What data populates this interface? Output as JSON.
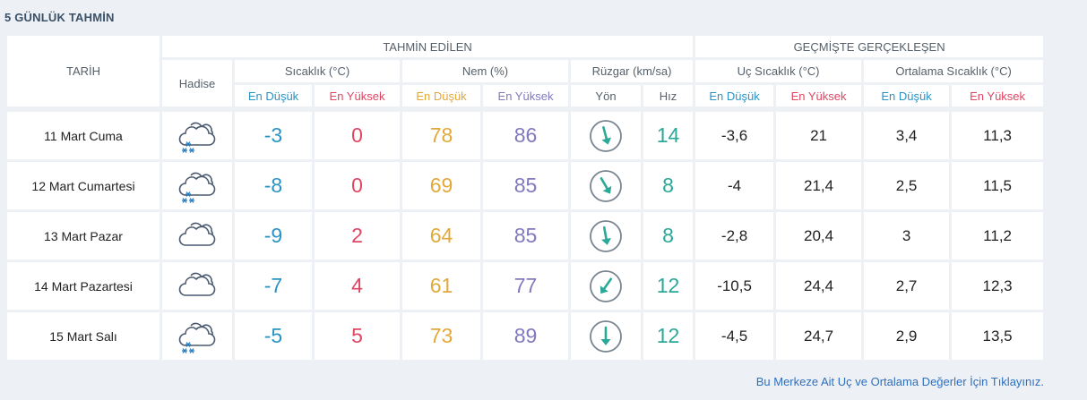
{
  "title": "5 GÜNLÜK TAHMİN",
  "headers": {
    "tarih": "TARİH",
    "tahmin_edilen": "TAHMİN EDİLEN",
    "gecmiste": "GEÇMİŞTE GERÇEKLEŞEN",
    "hadise": "Hadise",
    "sicaklik": "Sıcaklık (°C)",
    "nem": "Nem (%)",
    "ruzgar": "Rüzgar (km/sa)",
    "uc_sicaklik": "Uç Sıcaklık (°C)",
    "ortalama_sicaklik": "Ortalama Sıcaklık (°C)",
    "en_dusuk": "En Düşük",
    "en_yuksek": "En Yüksek",
    "yon": "Yön",
    "hiz": "Hız"
  },
  "rows": [
    {
      "date": "11 Mart Cuma",
      "icon": "snow-cloud-icon",
      "temp_low": "-3",
      "temp_high": "0",
      "hum_low": "78",
      "hum_high": "86",
      "wind_dir_deg": 165,
      "wind_speed": "14",
      "extreme_low": "-3,6",
      "extreme_high": "21",
      "avg_low": "3,4",
      "avg_high": "11,3"
    },
    {
      "date": "12 Mart Cumartesi",
      "icon": "snow-cloud-icon",
      "temp_low": "-8",
      "temp_high": "0",
      "hum_low": "69",
      "hum_high": "85",
      "wind_dir_deg": 150,
      "wind_speed": "8",
      "extreme_low": "-4",
      "extreme_high": "21,4",
      "avg_low": "2,5",
      "avg_high": "11,5"
    },
    {
      "date": "13 Mart Pazar",
      "icon": "cloud-icon",
      "temp_low": "-9",
      "temp_high": "2",
      "hum_low": "64",
      "hum_high": "85",
      "wind_dir_deg": 170,
      "wind_speed": "8",
      "extreme_low": "-2,8",
      "extreme_high": "20,4",
      "avg_low": "3",
      "avg_high": "11,2"
    },
    {
      "date": "14 Mart Pazartesi",
      "icon": "cloud-icon",
      "temp_low": "-7",
      "temp_high": "4",
      "hum_low": "61",
      "hum_high": "77",
      "wind_dir_deg": 215,
      "wind_speed": "12",
      "extreme_low": "-10,5",
      "extreme_high": "24,4",
      "avg_low": "2,7",
      "avg_high": "12,3"
    },
    {
      "date": "15 Mart Salı",
      "icon": "snow-cloud-icon",
      "temp_low": "-5",
      "temp_high": "5",
      "hum_low": "73",
      "hum_high": "89",
      "wind_dir_deg": 180,
      "wind_speed": "12",
      "extreme_low": "-4,5",
      "extreme_high": "24,7",
      "avg_low": "2,9",
      "avg_high": "13,5"
    }
  ],
  "footer_link": "Bu Merkeze Ait Uç ve Ortalama Değerler İçin Tıklayınız.",
  "colors": {
    "low": "#2b93c4",
    "high": "#e04562",
    "humidity_low": "#e3a83a",
    "humidity_high": "#8179bd",
    "wind": "#2aa898",
    "link": "#2e6fbf"
  }
}
